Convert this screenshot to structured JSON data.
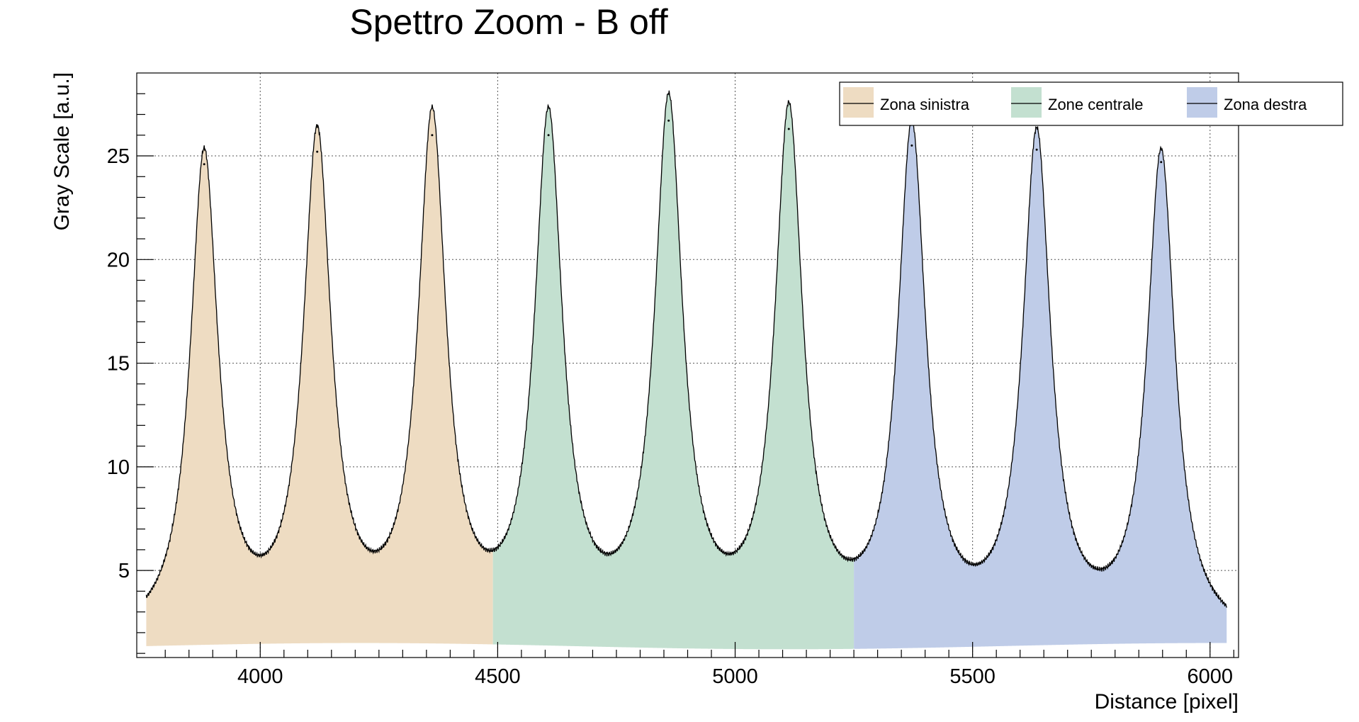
{
  "chart_data": {
    "type": "area",
    "title": "Spettro Zoom - B off",
    "xlabel": "Distance [pixel]",
    "ylabel": "Gray Scale [a.u.]",
    "xlim": [
      3740,
      6060
    ],
    "ylim": [
      0.8,
      29
    ],
    "x_ticks": [
      4000,
      4500,
      5000,
      5500,
      6000
    ],
    "y_ticks": [
      5,
      10,
      15,
      20,
      25
    ],
    "x_tick_labels": [
      "4000",
      "4500",
      "5000",
      "5500",
      "6000"
    ],
    "y_tick_labels": [
      "5",
      "10",
      "15",
      "20",
      "25"
    ],
    "grid": true,
    "legend_position": "top-right",
    "baseline": 1.5,
    "series": [
      {
        "name": "Zona sinistra",
        "color": "#eedcc2",
        "x_range": [
          3760,
          4490
        ],
        "peaks": [
          {
            "x": 3882,
            "y": 24.6
          },
          {
            "x": 4120,
            "y": 25.2
          },
          {
            "x": 4362,
            "y": 26.0
          }
        ]
      },
      {
        "name": "Zone centrale",
        "color": "#c3e0d0",
        "x_range": [
          4490,
          5250
        ],
        "peaks": [
          {
            "x": 4607,
            "y": 26.0
          },
          {
            "x": 4860,
            "y": 26.7
          },
          {
            "x": 5113,
            "y": 26.3
          }
        ]
      },
      {
        "name": "Zona destra",
        "color": "#bfcce8",
        "x_range": [
          5250,
          6035
        ],
        "peaks": [
          {
            "x": 5372,
            "y": 25.5
          },
          {
            "x": 5635,
            "y": 25.3
          },
          {
            "x": 5897,
            "y": 24.7
          }
        ]
      }
    ]
  }
}
